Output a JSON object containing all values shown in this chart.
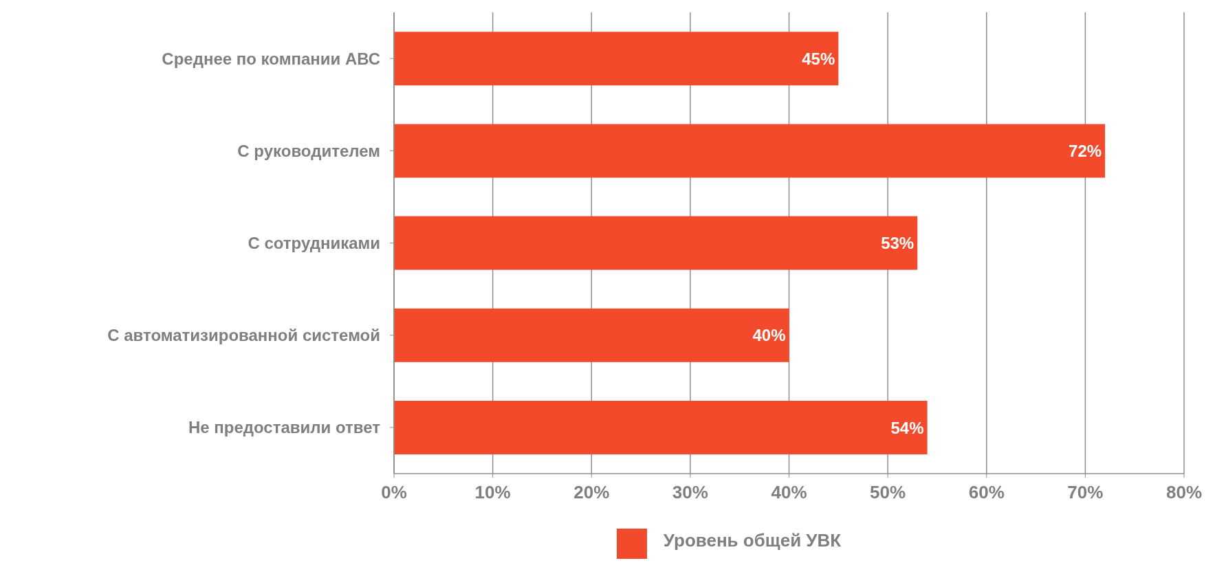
{
  "chart_data": {
    "type": "bar",
    "orientation": "horizontal",
    "categories": [
      "Среднее по компании АВС",
      "С руководителем",
      "С сотрудниками",
      "С автоматизированной системой",
      "Не предоставили ответ"
    ],
    "series": [
      {
        "name": "Уровень общей УВК",
        "color": "#f24a2a",
        "values": [
          45,
          72,
          53,
          40,
          54
        ],
        "value_labels": [
          "45%",
          "72%",
          "53%",
          "40%",
          "54%"
        ]
      }
    ],
    "xlim": [
      0,
      80
    ],
    "xticks": [
      {
        "value": 0,
        "label": "0%"
      },
      {
        "value": 10,
        "label": "10%"
      },
      {
        "value": 20,
        "label": "20%"
      },
      {
        "value": 30,
        "label": "30%"
      },
      {
        "value": 40,
        "label": "40%"
      },
      {
        "value": 50,
        "label": "50%"
      },
      {
        "value": 60,
        "label": "60%"
      },
      {
        "value": 70,
        "label": "70%"
      },
      {
        "value": 80,
        "label": "80%"
      }
    ],
    "grid": "x",
    "legend": "bottom"
  }
}
